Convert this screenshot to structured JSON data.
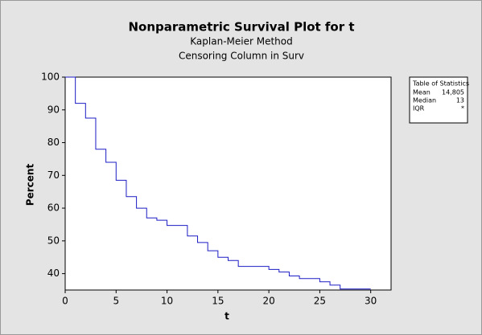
{
  "chart_data": {
    "type": "step",
    "title": "Nonparametric Survival Plot for t",
    "subtitle": "Kaplan-Meier Method",
    "subtitle2": "Censoring Column in Surv",
    "x_label": "t",
    "y_label": "Percent",
    "x": [
      0,
      1,
      2,
      3,
      4,
      5,
      6,
      7,
      8,
      9,
      10,
      12,
      13,
      14,
      15,
      16,
      17,
      20,
      21,
      22,
      23,
      25,
      26,
      27,
      30
    ],
    "values": [
      100,
      92,
      87.5,
      78,
      74,
      68.5,
      63.5,
      60,
      57,
      56.3,
      54.7,
      51.5,
      49.5,
      47,
      45,
      44,
      42.2,
      41.3,
      40.5,
      39.3,
      38.5,
      37.5,
      36.5,
      35.3,
      35.3
    ],
    "color": "#1c1cc4",
    "xlim": [
      0,
      32
    ],
    "ylim": [
      35,
      100
    ],
    "xticks": [
      0,
      5,
      10,
      15,
      20,
      25,
      30
    ],
    "yticks": [
      40,
      50,
      60,
      70,
      80,
      90,
      100
    ],
    "stats_table": {
      "title": "Table of Statistics",
      "rows": [
        [
          "Mean",
          "14,805"
        ],
        [
          "Median",
          "13"
        ],
        [
          "IQR",
          "*"
        ]
      ]
    }
  }
}
